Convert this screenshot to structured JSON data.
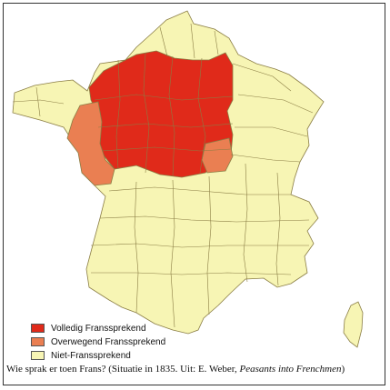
{
  "colors": {
    "full": "#e02a1a",
    "mostly": "#ea7f52",
    "none": "#f7f5b4",
    "border": "#8a7d44"
  },
  "legend": [
    {
      "key": "full",
      "label": "Volledig Franssprekend"
    },
    {
      "key": "mostly",
      "label": "Overwegend Franssprekend"
    },
    {
      "key": "none",
      "label": "Niet-Franssprekend"
    }
  ],
  "caption": {
    "text": "Wie sprak er toen Frans? (Situatie in 1835. Uit: E. Weber, ",
    "book": "Peasants into Frenchmen",
    "close": ")"
  }
}
